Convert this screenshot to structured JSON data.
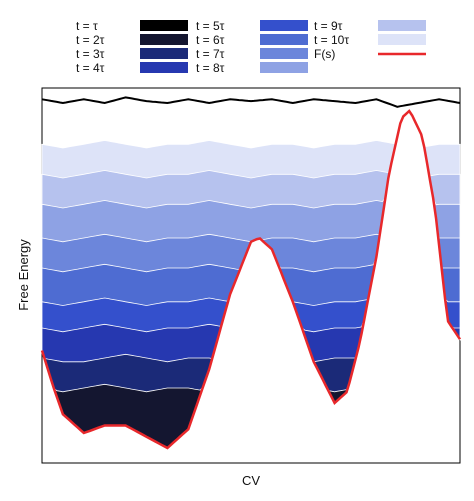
{
  "chart_data": {
    "type": "area",
    "title": "",
    "xlabel": "CV",
    "ylabel": "Free Energy",
    "legend_position": "top",
    "grid": false,
    "x_tick_labels": [],
    "y_tick_labels": [],
    "xlim": [
      0,
      1
    ],
    "ylim": [
      0,
      1
    ],
    "x": [
      0,
      0.05,
      0.1,
      0.15,
      0.2,
      0.25,
      0.3,
      0.35,
      0.4,
      0.45,
      0.5,
      0.55,
      0.6,
      0.65,
      0.7,
      0.75,
      0.8,
      0.85,
      0.9,
      0.95,
      1.0
    ],
    "fs_curve": {
      "name": "F(s)",
      "color": "#e8282b",
      "x": [
        0,
        0.025,
        0.05,
        0.1,
        0.15,
        0.2,
        0.25,
        0.3,
        0.35,
        0.4,
        0.45,
        0.5,
        0.52,
        0.55,
        0.6,
        0.65,
        0.7,
        0.73,
        0.76,
        0.8,
        0.83,
        0.86,
        0.88,
        0.91,
        0.94,
        0.97,
        1.0
      ],
      "y": [
        0.3,
        0.21,
        0.13,
        0.08,
        0.1,
        0.1,
        0.07,
        0.04,
        0.09,
        0.25,
        0.45,
        0.59,
        0.6,
        0.57,
        0.43,
        0.27,
        0.16,
        0.19,
        0.32,
        0.55,
        0.77,
        0.92,
        0.94,
        0.87,
        0.68,
        0.38,
        0.33
      ]
    },
    "series": [
      {
        "name": "t = τ",
        "color": "#000000",
        "y": [
          0.97,
          0.96,
          0.97,
          0.96,
          0.975,
          0.965,
          0.96,
          0.97,
          0.96,
          0.97,
          0.965,
          0.97,
          0.96,
          0.97,
          0.965,
          0.96,
          0.97,
          0.95,
          0.96,
          0.97,
          0.96
        ]
      },
      {
        "name": "t = 2τ",
        "color": "#141630",
        "y": [
          0.2,
          0.19,
          0.2,
          0.21,
          0.2,
          0.19,
          0.2,
          0.2,
          0.19,
          0.2,
          0.2,
          0.19,
          0.2,
          0.2,
          0.19,
          0.2,
          0.2,
          0.2,
          0.19,
          0.2,
          0.2
        ]
      },
      {
        "name": "t = 3τ",
        "color": "#1b2a78",
        "y": [
          0.28,
          0.27,
          0.27,
          0.28,
          0.29,
          0.28,
          0.27,
          0.28,
          0.28,
          0.27,
          0.28,
          0.28,
          0.28,
          0.27,
          0.28,
          0.28,
          0.27,
          0.28,
          0.28,
          0.27,
          0.28
        ]
      },
      {
        "name": "t = 4τ",
        "color": "#2638b0",
        "y": [
          0.36,
          0.35,
          0.36,
          0.37,
          0.36,
          0.35,
          0.36,
          0.36,
          0.37,
          0.36,
          0.35,
          0.36,
          0.36,
          0.35,
          0.36,
          0.36,
          0.37,
          0.36,
          0.35,
          0.36,
          0.36
        ]
      },
      {
        "name": "t = 5τ",
        "color": "#3450cc",
        "y": [
          0.43,
          0.42,
          0.43,
          0.44,
          0.43,
          0.42,
          0.43,
          0.43,
          0.44,
          0.43,
          0.42,
          0.43,
          0.43,
          0.42,
          0.43,
          0.43,
          0.44,
          0.43,
          0.42,
          0.43,
          0.43
        ]
      },
      {
        "name": "t = 6τ",
        "color": "#4e6cd2",
        "y": [
          0.52,
          0.51,
          0.52,
          0.53,
          0.52,
          0.51,
          0.52,
          0.52,
          0.53,
          0.52,
          0.51,
          0.52,
          0.52,
          0.51,
          0.52,
          0.52,
          0.53,
          0.52,
          0.51,
          0.52,
          0.52
        ]
      },
      {
        "name": "t = 7τ",
        "color": "#6c86db",
        "y": [
          0.6,
          0.59,
          0.6,
          0.61,
          0.6,
          0.59,
          0.6,
          0.6,
          0.61,
          0.6,
          0.59,
          0.6,
          0.6,
          0.59,
          0.6,
          0.6,
          0.61,
          0.6,
          0.59,
          0.6,
          0.6
        ]
      },
      {
        "name": "t = 8τ",
        "color": "#8ea2e4",
        "y": [
          0.69,
          0.68,
          0.69,
          0.7,
          0.69,
          0.68,
          0.69,
          0.69,
          0.7,
          0.69,
          0.68,
          0.69,
          0.69,
          0.68,
          0.69,
          0.69,
          0.7,
          0.69,
          0.68,
          0.69,
          0.69
        ]
      },
      {
        "name": "t = 9τ",
        "color": "#b6c2ee",
        "y": [
          0.77,
          0.76,
          0.77,
          0.78,
          0.77,
          0.76,
          0.77,
          0.77,
          0.78,
          0.77,
          0.76,
          0.77,
          0.77,
          0.76,
          0.77,
          0.77,
          0.78,
          0.77,
          0.76,
          0.77,
          0.77
        ]
      },
      {
        "name": "t = 10τ",
        "color": "#dde3f8",
        "y": [
          0.85,
          0.84,
          0.85,
          0.86,
          0.85,
          0.84,
          0.85,
          0.85,
          0.86,
          0.85,
          0.84,
          0.85,
          0.85,
          0.84,
          0.85,
          0.85,
          0.86,
          0.85,
          0.84,
          0.85,
          0.85
        ]
      }
    ]
  }
}
